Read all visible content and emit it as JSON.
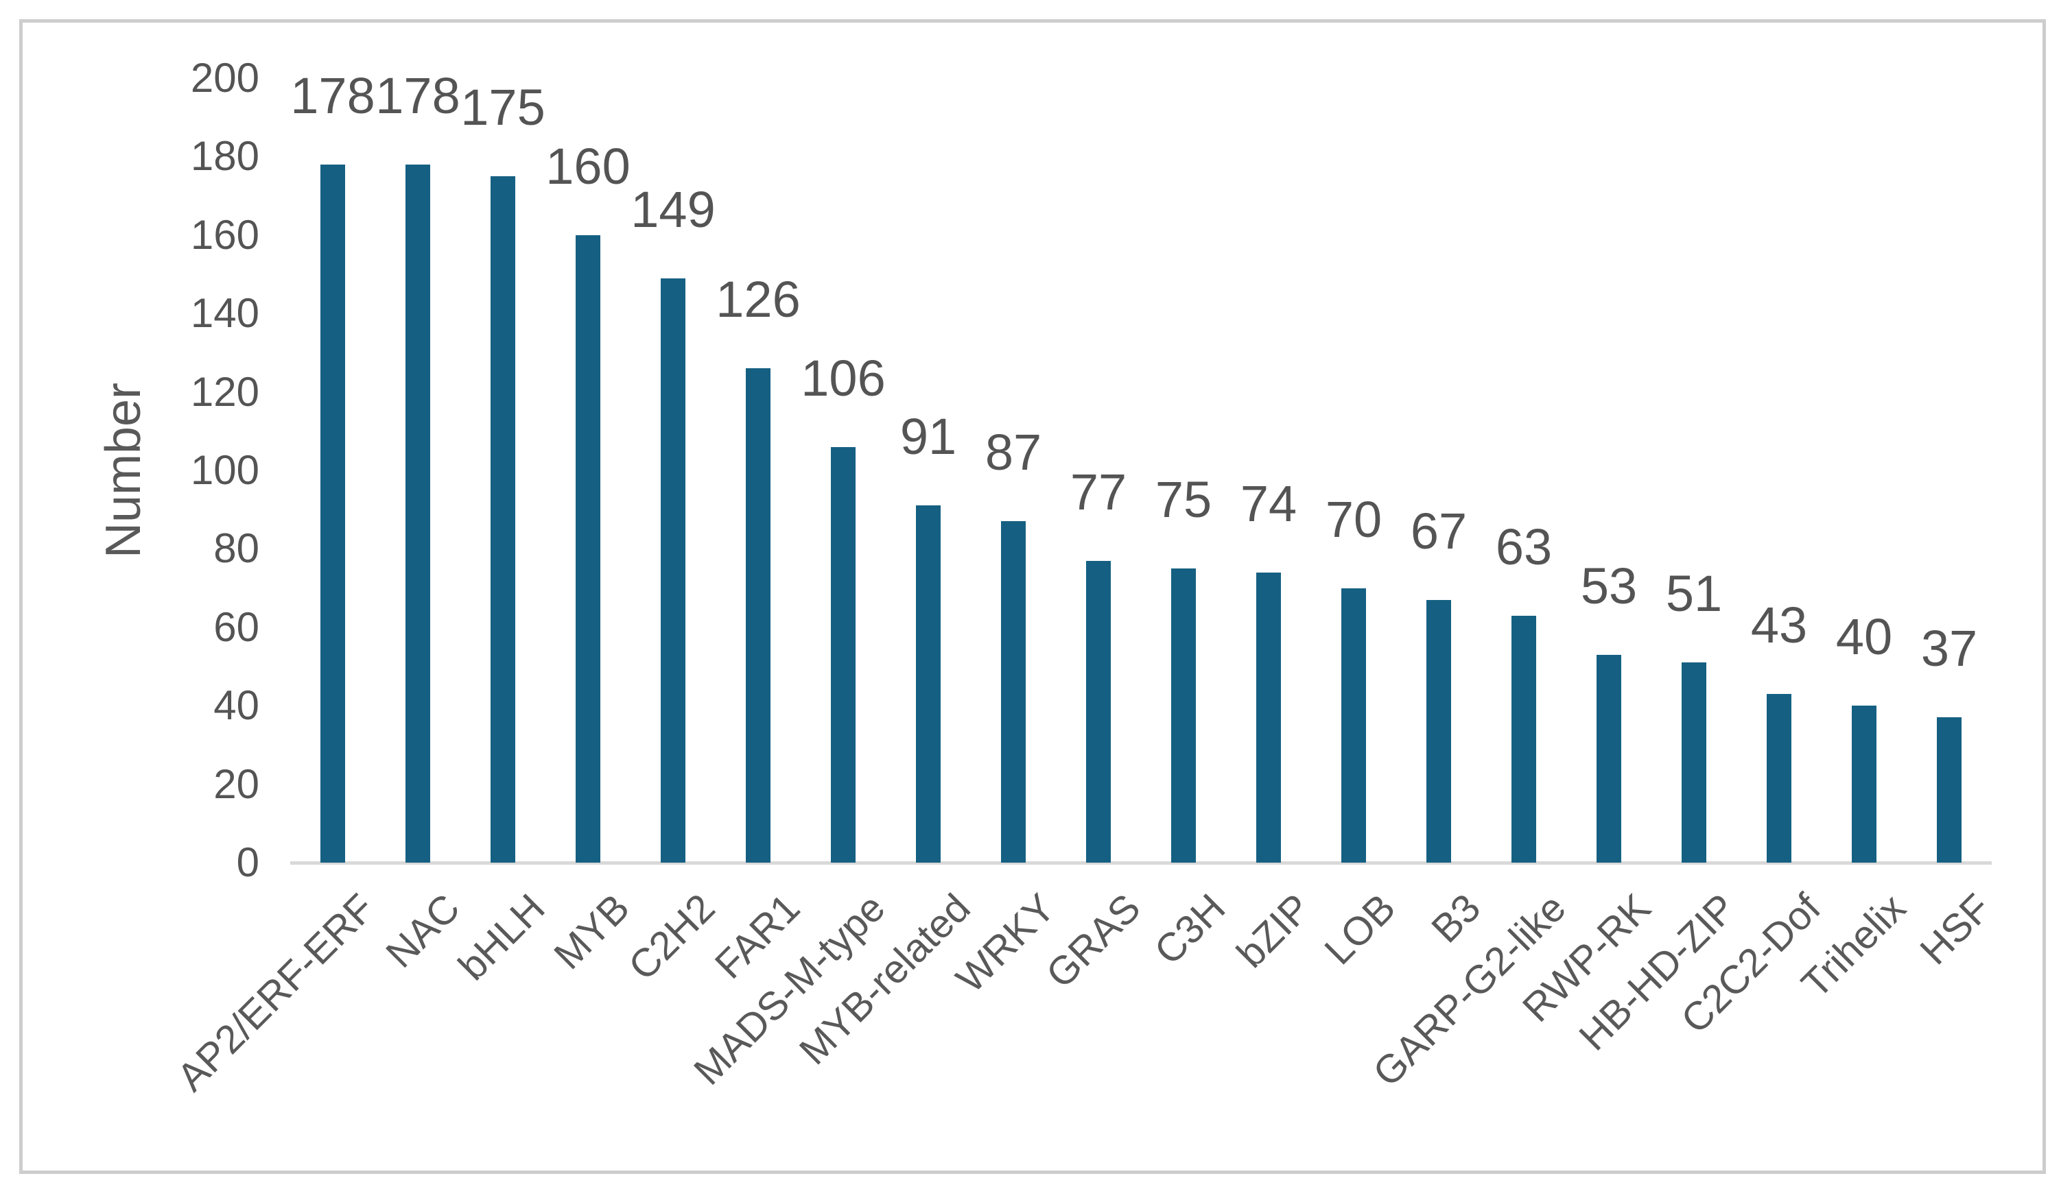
{
  "chart_data": {
    "type": "bar",
    "title": "",
    "xlabel": "",
    "ylabel": "Number",
    "categories": [
      "AP2/ERF-ERF",
      "NAC",
      "bHLH",
      "MYB",
      "C2H2",
      "FAR1",
      "MADS-M-type",
      "MYB-related",
      "WRKY",
      "GRAS",
      "C3H",
      "bZIP",
      "LOB",
      "B3",
      "GARP-G2-like",
      "RWP-RK",
      "HB-HD-ZIP",
      "C2C2-Dof",
      "Trihelix",
      "HSF"
    ],
    "values": [
      178,
      178,
      175,
      160,
      149,
      126,
      106,
      91,
      87,
      77,
      75,
      74,
      70,
      67,
      63,
      53,
      51,
      43,
      40,
      37
    ],
    "data_labels": [
      "178",
      "178",
      "175",
      "160",
      "149",
      "126",
      "106",
      "91",
      "87",
      "77",
      "75",
      "74",
      "70",
      "67",
      "63",
      "53",
      "51",
      "43",
      "40",
      "37"
    ],
    "ylim": [
      0,
      200
    ],
    "yticks": [
      0,
      20,
      40,
      60,
      80,
      100,
      120,
      140,
      160,
      180,
      200
    ],
    "grid": "off",
    "legend_position": "none",
    "bar_color": "#156082",
    "text_color": "#595959",
    "axis_line_color": "#d9d9d9",
    "frame_border_color": "#cdcdcd"
  }
}
